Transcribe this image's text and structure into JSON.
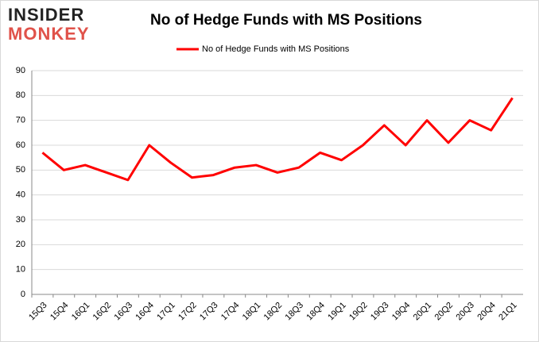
{
  "logo": [
    "INSIDER",
    "MONKEY"
  ],
  "chart_data": {
    "type": "line",
    "title": "No of Hedge Funds with MS Positions",
    "categories": [
      "15Q3",
      "15Q4",
      "16Q1",
      "16Q2",
      "16Q3",
      "16Q4",
      "17Q1",
      "17Q2",
      "17Q3",
      "17Q4",
      "18Q1",
      "18Q2",
      "18Q3",
      "18Q4",
      "19Q1",
      "19Q2",
      "19Q3",
      "19Q4",
      "20Q1",
      "20Q2",
      "20Q3",
      "20Q4",
      "21Q1"
    ],
    "series": [
      {
        "name": "No of Hedge Funds with MS Positions",
        "color": "#ff0000",
        "values": [
          57,
          50,
          52,
          49,
          46,
          60,
          53,
          47,
          48,
          51,
          52,
          49,
          51,
          57,
          54,
          60,
          68,
          60,
          70,
          61,
          70,
          66,
          79
        ]
      }
    ],
    "ylim": [
      0,
      90
    ],
    "yticks": [
      0,
      10,
      20,
      30,
      40,
      50,
      60,
      70,
      80,
      90
    ],
    "grid": true,
    "legend": "top"
  }
}
